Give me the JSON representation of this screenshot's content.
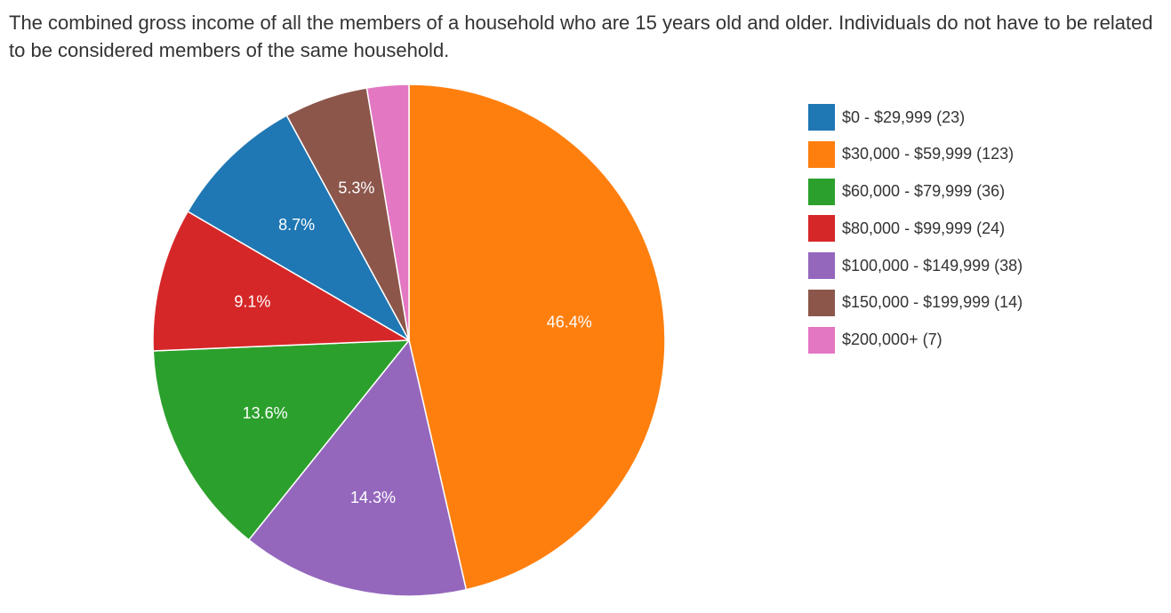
{
  "question": {
    "text": "The combined gross income of all the members of a household who are 15 years old and older. Individuals do not have to be related to be considered members of the same household."
  },
  "chart_data": {
    "type": "pie",
    "title": "",
    "legend_position": "right",
    "slices": [
      {
        "label": "$0 - $29,999",
        "count": 23,
        "value_pct": 8.7,
        "legend_text": "$0 - $29,999 (23)",
        "slice_label": "8.7%",
        "color": "#1f77b4"
      },
      {
        "label": "$30,000 - $59,999",
        "count": 123,
        "value_pct": 46.4,
        "legend_text": "$30,000 - $59,999 (123)",
        "slice_label": "46.4%",
        "color": "#ff7f0e"
      },
      {
        "label": "$60,000 - $79,999",
        "count": 36,
        "value_pct": 13.6,
        "legend_text": "$60,000 - $79,999 (36)",
        "slice_label": "13.6%",
        "color": "#2ca02c"
      },
      {
        "label": "$80,000 - $99,999",
        "count": 24,
        "value_pct": 9.1,
        "legend_text": "$80,000 - $99,999 (24)",
        "slice_label": "9.1%",
        "color": "#d62728"
      },
      {
        "label": "$100,000 - $149,999",
        "count": 38,
        "value_pct": 14.3,
        "legend_text": "$100,000 - $149,999 (38)",
        "slice_label": "14.3%",
        "color": "#9467bd"
      },
      {
        "label": "$150,000 - $199,999",
        "count": 14,
        "value_pct": 5.3,
        "legend_text": "$150,000 - $199,999 (14)",
        "slice_label": "5.3%",
        "color": "#8c564b"
      },
      {
        "label": "$200,000+",
        "count": 7,
        "value_pct": 2.6,
        "legend_text": "$200,000+ (7)",
        "slice_label": "",
        "color": "#e377c2"
      }
    ]
  }
}
